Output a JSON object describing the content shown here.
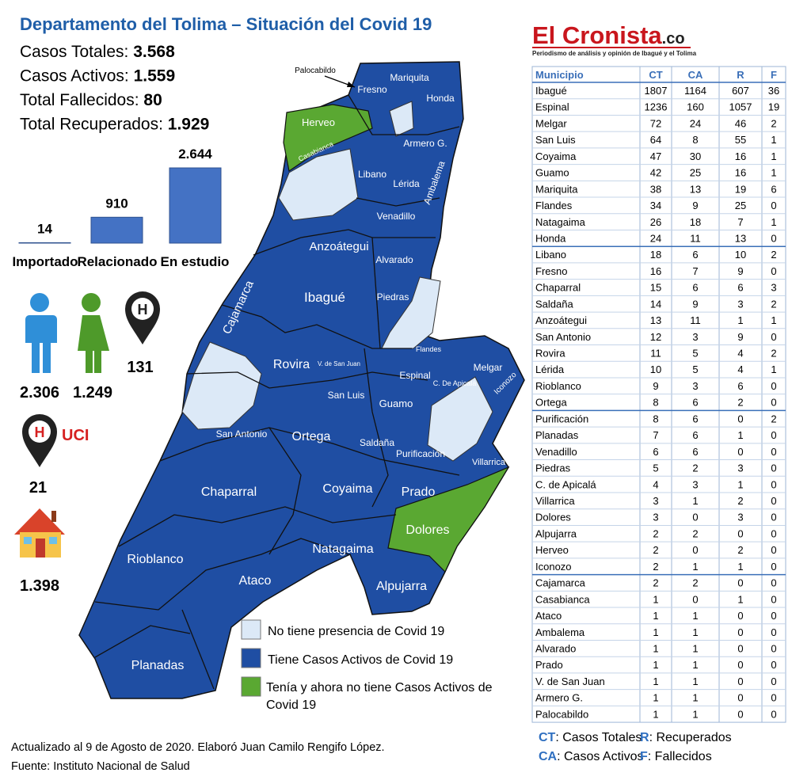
{
  "header": {
    "title": "Departamento del Tolima – Situación del Covid 19",
    "stats": [
      {
        "label": "Casos Totales:",
        "value": "3.568"
      },
      {
        "label": "Casos Activos:",
        "value": "1.559"
      },
      {
        "label": "Total Fallecidos:",
        "value": "80"
      },
      {
        "label": "Total Recuperados:",
        "value": "1.929"
      }
    ]
  },
  "chart_data": {
    "type": "bar",
    "categories": [
      "Importado",
      "Relacionado",
      "En estudio"
    ],
    "values": [
      14,
      910,
      2644
    ],
    "value_labels": [
      "14",
      "910",
      "2.644"
    ],
    "color": "#4472c4"
  },
  "demographics": {
    "men": "2.306",
    "women": "1.249",
    "hospitalized": "131",
    "uci_label": "UCI",
    "uci": "21",
    "home": "1.398"
  },
  "map": {
    "regions": [
      "Palocabildo",
      "Fresno",
      "Mariquita",
      "Honda",
      "Herveo",
      "Casabianca",
      "Armero G.",
      "Libano",
      "Lérida",
      "Ambalema",
      "Venadillo",
      "Anzoátegui",
      "Alvarado",
      "Ibagué",
      "Cajamarca",
      "Piedras",
      "Flandes",
      "Rovira",
      "V. de San Juan",
      "Espinal",
      "C. De Apicalá",
      "Melgar",
      "Iconozo",
      "San Luis",
      "Guamo",
      "San Antonio",
      "Ortega",
      "Saldaña",
      "Purificación",
      "Villarrica",
      "Chaparral",
      "Coyaima",
      "Prado",
      "Dolores",
      "Natagaima",
      "Rioblanco",
      "Ataco",
      "Alpujarra",
      "Planadas"
    ],
    "legend": [
      {
        "label": "No tiene presencia de Covid 19",
        "color": "#dce9f7"
      },
      {
        "label": "Tiene Casos Activos de Covid 19",
        "color": "#1f4ea3"
      },
      {
        "label": "Tenía y ahora no tiene Casos Activos de Covid 19",
        "color": "#5aa832"
      }
    ]
  },
  "footer": [
    "Actualizado al 9 de Agosto de 2020. Elaboró Juan Camilo Rengifo López.",
    "Fuente: Instituto Nacional de Salud"
  ],
  "brand": {
    "name": "El Cronista",
    "domain": ".co",
    "tagline": "Periodismo de análisis y opinión de Ibagué y el Tolima"
  },
  "table": {
    "header": [
      "Municipio",
      "CT",
      "CA",
      "R",
      "F"
    ],
    "rows": [
      [
        "Ibagué",
        1807,
        1164,
        607,
        36
      ],
      [
        "Espinal",
        1236,
        160,
        1057,
        19
      ],
      [
        "Melgar",
        72,
        24,
        46,
        2
      ],
      [
        "San Luis",
        64,
        8,
        55,
        1
      ],
      [
        "Coyaima",
        47,
        30,
        16,
        1
      ],
      [
        "Guamo",
        42,
        25,
        16,
        1
      ],
      [
        "Mariquita",
        38,
        13,
        19,
        6
      ],
      [
        "Flandes",
        34,
        9,
        25,
        0
      ],
      [
        "Natagaima",
        26,
        18,
        7,
        1
      ],
      [
        "Honda",
        24,
        11,
        13,
        0
      ],
      [
        "Libano",
        18,
        6,
        10,
        2
      ],
      [
        "Fresno",
        16,
        7,
        9,
        0
      ],
      [
        "Chaparral",
        15,
        6,
        6,
        3
      ],
      [
        "Saldaña",
        14,
        9,
        3,
        2
      ],
      [
        "Anzoátegui",
        13,
        11,
        1,
        1
      ],
      [
        "San Antonio",
        12,
        3,
        9,
        0
      ],
      [
        "Rovira",
        11,
        5,
        4,
        2
      ],
      [
        "Lérida",
        10,
        5,
        4,
        1
      ],
      [
        "Rioblanco",
        9,
        3,
        6,
        0
      ],
      [
        "Ortega",
        8,
        6,
        2,
        0
      ],
      [
        "Purificación",
        8,
        6,
        0,
        2
      ],
      [
        "Planadas",
        7,
        6,
        1,
        0
      ],
      [
        "Venadillo",
        6,
        6,
        0,
        0
      ],
      [
        "Piedras",
        5,
        2,
        3,
        0
      ],
      [
        "C. de Apicalá",
        4,
        3,
        1,
        0
      ],
      [
        "Villarrica",
        3,
        1,
        2,
        0
      ],
      [
        "Dolores",
        3,
        0,
        3,
        0
      ],
      [
        "Alpujarra",
        2,
        2,
        0,
        0
      ],
      [
        "Herveo",
        2,
        0,
        2,
        0
      ],
      [
        "Iconozo",
        2,
        1,
        1,
        0
      ],
      [
        "Cajamarca",
        2,
        2,
        0,
        0
      ],
      [
        "Casabianca",
        1,
        0,
        1,
        0
      ],
      [
        "Ataco",
        1,
        1,
        0,
        0
      ],
      [
        "Ambalema",
        1,
        1,
        0,
        0
      ],
      [
        "Alvarado",
        1,
        1,
        0,
        0
      ],
      [
        "Prado",
        1,
        1,
        0,
        0
      ],
      [
        "V. de San Juan",
        1,
        1,
        0,
        0
      ],
      [
        "Armero G.",
        1,
        1,
        0,
        0
      ],
      [
        "Palocabildo",
        1,
        1,
        0,
        0
      ]
    ],
    "notes": [
      {
        "abbr": "CT",
        "text": ": Casos Totales"
      },
      {
        "abbr": "R",
        "text": ": Recuperados"
      },
      {
        "abbr": "CA",
        "text": ": Casos Activos"
      },
      {
        "abbr": "F",
        "text": ": Fallecidos"
      }
    ]
  }
}
